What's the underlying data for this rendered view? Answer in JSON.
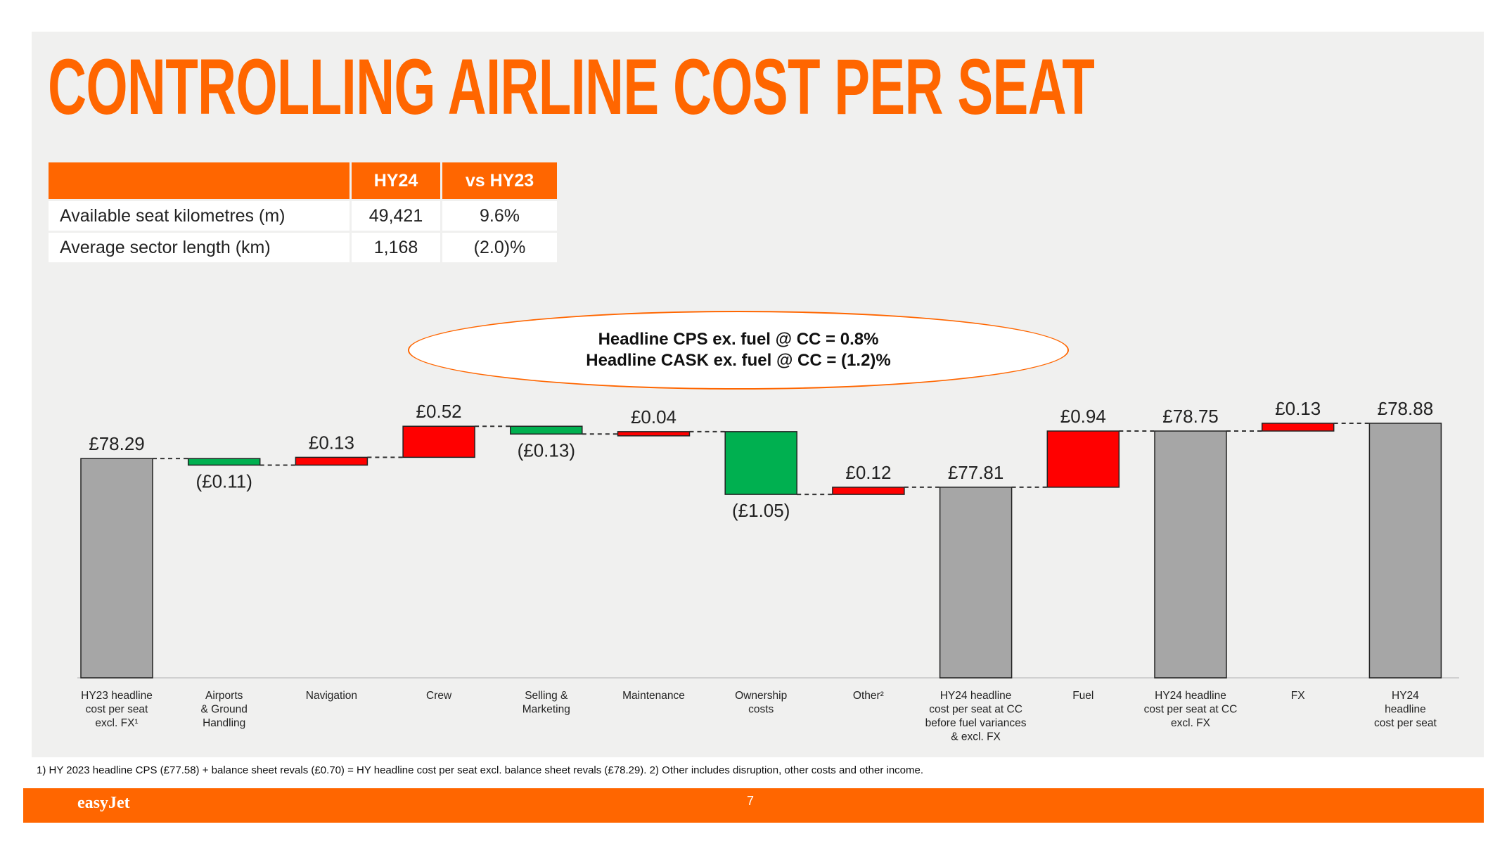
{
  "title": "CONTROLLING AIRLINE COST PER SEAT",
  "stats_table": {
    "headers": [
      "",
      "HY24",
      "vs HY23"
    ],
    "rows": [
      {
        "label": "Available seat kilometres (m)",
        "hy24": "49,421",
        "vs_hy23": "9.6%"
      },
      {
        "label": "Average sector length (km)",
        "hy24": "1,168",
        "vs_hy23": "(2.0)%"
      }
    ]
  },
  "kpi": {
    "line1": "Headline CPS ex. fuel @ CC = 0.8%",
    "line2": "Headline CASK ex. fuel @ CC = (1.2)%"
  },
  "colors": {
    "brand_orange": "#ff6600",
    "total_bar": "#a6a6a6",
    "increase_bar": "#ff0000",
    "decrease_bar": "#00b050"
  },
  "chart_data": {
    "type": "waterfall",
    "ylim": [
      0,
      79.3
    ],
    "steps": [
      {
        "category": [
          "HY23 headline",
          "cost per seat",
          "excl. FX¹"
        ],
        "kind": "total",
        "value": 78.29,
        "label": "£78.29"
      },
      {
        "category": [
          "Airports",
          "& Ground",
          "Handling"
        ],
        "kind": "delta",
        "value": -0.11,
        "label": "(£0.11)"
      },
      {
        "category": [
          "Navigation"
        ],
        "kind": "delta",
        "value": 0.13,
        "label": "£0.13"
      },
      {
        "category": [
          "Crew"
        ],
        "kind": "delta",
        "value": 0.52,
        "label": "£0.52"
      },
      {
        "category": [
          "Selling &",
          "Marketing"
        ],
        "kind": "delta",
        "value": -0.13,
        "label": "(£0.13)"
      },
      {
        "category": [
          "Maintenance"
        ],
        "kind": "delta",
        "value": 0.04,
        "label": "£0.04"
      },
      {
        "category": [
          "Ownership",
          "costs"
        ],
        "kind": "delta",
        "value": -1.05,
        "label": "(£1.05)"
      },
      {
        "category": [
          "Other²"
        ],
        "kind": "delta",
        "value": 0.12,
        "label": "£0.12"
      },
      {
        "category": [
          "HY24 headline",
          "cost per seat at CC",
          "before fuel variances",
          "& excl. FX"
        ],
        "kind": "total",
        "value": 77.81,
        "label": "£77.81"
      },
      {
        "category": [
          "Fuel"
        ],
        "kind": "delta",
        "value": 0.94,
        "label": "£0.94"
      },
      {
        "category": [
          "HY24 headline",
          "cost per seat at CC",
          "excl. FX"
        ],
        "kind": "total",
        "value": 78.75,
        "label": "£78.75"
      },
      {
        "category": [
          "FX"
        ],
        "kind": "delta",
        "value": 0.13,
        "label": "£0.13"
      },
      {
        "category": [
          "HY24",
          "headline",
          "cost per seat"
        ],
        "kind": "total",
        "value": 78.88,
        "label": "£78.88"
      }
    ]
  },
  "footnote": "1) HY 2023 headline CPS (£77.58) + balance sheet revals (£0.70) = HY headline cost per seat excl. balance sheet revals (£78.29). 2) Other includes disruption, other costs and other income.",
  "footer": {
    "logo": "easyJet",
    "page_number": "7"
  }
}
